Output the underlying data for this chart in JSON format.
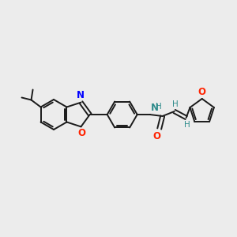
{
  "background_color": "#ececec",
  "bond_color": "#1a1a1a",
  "N_color": "#0000ff",
  "O_color": "#ff2200",
  "NH_color": "#2e8b8b",
  "H_color": "#2e8b8b",
  "figsize": [
    3.0,
    3.0
  ],
  "dpi": 100,
  "xlim": [
    0,
    300
  ],
  "ylim": [
    0,
    300
  ]
}
